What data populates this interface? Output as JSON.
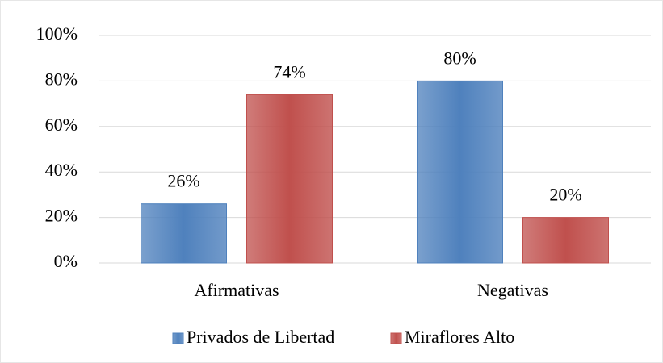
{
  "chart_data": {
    "type": "bar",
    "categories": [
      "Afirmativas",
      "Negativas"
    ],
    "series": [
      {
        "name": "Privados de Libertad",
        "color": "#4f81bd",
        "values": [
          26,
          80
        ],
        "value_labels": [
          "26%",
          "80%"
        ]
      },
      {
        "name": "Miraflores Alto",
        "color": "#c0504d",
        "values": [
          74,
          20
        ],
        "value_labels": [
          "74%",
          "20%"
        ]
      }
    ],
    "ylim": [
      0,
      100
    ],
    "yticks": [
      {
        "value": 0,
        "label": "0%"
      },
      {
        "value": 20,
        "label": "20%"
      },
      {
        "value": 40,
        "label": "40%"
      },
      {
        "value": 60,
        "label": "60%"
      },
      {
        "value": 80,
        "label": "80%"
      },
      {
        "value": 100,
        "label": "100%"
      }
    ],
    "grid": true,
    "legend": "bottom"
  }
}
